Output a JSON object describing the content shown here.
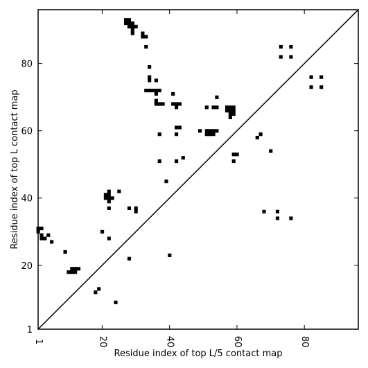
{
  "chart_data": {
    "type": "heatmap",
    "xlabel": "Residue index of top L/5 contact map",
    "ylabel": "Residue index of top L contact map",
    "xlim": [
      1,
      96
    ],
    "ylim": [
      1,
      96
    ],
    "grid": false,
    "diagonal_line": true,
    "colors": {
      "cell": "#000000",
      "background": "#ffffff",
      "frame": "#000000"
    },
    "x_ticks": [
      {
        "value": 1,
        "label": "1"
      },
      {
        "value": 20,
        "label": "20"
      },
      {
        "value": 40,
        "label": "40"
      },
      {
        "value": 60,
        "label": "60"
      },
      {
        "value": 80,
        "label": "80"
      }
    ],
    "y_ticks": [
      {
        "value": 1,
        "label": "1"
      },
      {
        "value": 20,
        "label": "20"
      },
      {
        "value": 40,
        "label": "40"
      },
      {
        "value": 60,
        "label": "60"
      },
      {
        "value": 80,
        "label": "80"
      }
    ],
    "contacts_above_diagonal": [
      [
        27,
        93
      ],
      [
        28,
        93
      ],
      [
        27,
        92
      ],
      [
        28,
        92
      ],
      [
        29,
        92
      ],
      [
        28,
        91
      ],
      [
        29,
        91
      ],
      [
        30,
        91
      ],
      [
        29,
        90
      ],
      [
        29,
        89
      ],
      [
        32,
        89
      ],
      [
        32,
        88
      ],
      [
        33,
        88
      ],
      [
        33,
        85
      ],
      [
        34,
        79
      ],
      [
        34,
        76
      ],
      [
        34,
        75
      ],
      [
        36,
        75
      ],
      [
        33,
        72
      ],
      [
        34,
        72
      ],
      [
        35,
        72
      ],
      [
        36,
        72
      ],
      [
        37,
        72
      ],
      [
        36,
        71
      ],
      [
        41,
        71
      ],
      [
        36,
        69
      ],
      [
        36,
        68
      ],
      [
        37,
        68
      ],
      [
        38,
        68
      ],
      [
        41,
        68
      ],
      [
        42,
        68
      ],
      [
        43,
        68
      ],
      [
        42,
        67
      ],
      [
        42,
        61
      ],
      [
        43,
        61
      ],
      [
        37,
        59
      ],
      [
        42,
        59
      ],
      [
        37,
        51
      ],
      [
        42,
        51
      ],
      [
        44,
        52
      ],
      [
        51,
        67
      ],
      [
        53,
        67
      ],
      [
        54,
        67
      ],
      [
        54,
        70
      ],
      [
        49,
        60
      ],
      [
        51,
        60
      ],
      [
        52,
        60
      ],
      [
        53,
        60
      ],
      [
        54,
        60
      ],
      [
        51,
        59
      ],
      [
        52,
        59
      ],
      [
        53,
        59
      ],
      [
        57,
        67
      ],
      [
        58,
        67
      ],
      [
        59,
        67
      ],
      [
        57,
        66
      ],
      [
        58,
        66
      ],
      [
        59,
        66
      ],
      [
        58,
        65
      ],
      [
        59,
        65
      ],
      [
        58,
        64
      ],
      [
        59,
        53
      ],
      [
        60,
        53
      ],
      [
        59,
        51
      ],
      [
        66,
        58
      ],
      [
        67,
        59
      ],
      [
        70,
        54
      ],
      [
        73,
        85
      ],
      [
        76,
        85
      ],
      [
        73,
        82
      ],
      [
        76,
        82
      ],
      [
        82,
        76
      ],
      [
        85,
        76
      ],
      [
        82,
        73
      ],
      [
        85,
        73
      ]
    ],
    "contacts_below_diagonal": [
      [
        1,
        31
      ],
      [
        2,
        31
      ],
      [
        1,
        30
      ],
      [
        2,
        29
      ],
      [
        2,
        28
      ],
      [
        3,
        28
      ],
      [
        4,
        29
      ],
      [
        5,
        27
      ],
      [
        9,
        24
      ],
      [
        10,
        18
      ],
      [
        11,
        18
      ],
      [
        12,
        18
      ],
      [
        11,
        19
      ],
      [
        12,
        19
      ],
      [
        13,
        19
      ],
      [
        18,
        12
      ],
      [
        19,
        13
      ],
      [
        20,
        30
      ],
      [
        22,
        28
      ],
      [
        21,
        41
      ],
      [
        22,
        41
      ],
      [
        21,
        40
      ],
      [
        22,
        40
      ],
      [
        23,
        40
      ],
      [
        22,
        42
      ],
      [
        22,
        39
      ],
      [
        22,
        37
      ],
      [
        25,
        42
      ],
      [
        24,
        9
      ],
      [
        28,
        37
      ],
      [
        28,
        22
      ],
      [
        30,
        37
      ],
      [
        30,
        36
      ],
      [
        39,
        45
      ],
      [
        40,
        23
      ],
      [
        68,
        36
      ],
      [
        72,
        36
      ],
      [
        72,
        34
      ],
      [
        76,
        34
      ]
    ]
  }
}
